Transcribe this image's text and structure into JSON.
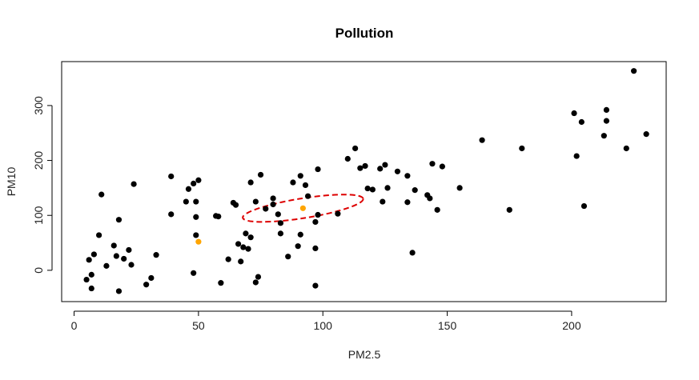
{
  "chart_data": {
    "type": "scatter",
    "title": "Pollution",
    "xlabel": "PM2.5",
    "ylabel": "PM10",
    "xlim": [
      -5,
      238
    ],
    "ylim": [
      -57,
      380
    ],
    "xticks": [
      "0",
      "50",
      "100",
      "150",
      "200"
    ],
    "xtick_values": [
      0,
      50,
      100,
      150,
      200
    ],
    "yticks": [
      "0",
      "100",
      "200",
      "300"
    ],
    "ytick_values": [
      0,
      100,
      200,
      300
    ],
    "grid": false,
    "point_color": "#000000",
    "highlight_color": "#FFA500",
    "ellipse_color": "#DD0000",
    "series": [
      {
        "points": [
          [
            5,
            -17
          ],
          [
            6,
            19
          ],
          [
            7,
            -33
          ],
          [
            7,
            -8
          ],
          [
            8,
            29
          ],
          [
            10,
            64
          ],
          [
            11,
            138
          ],
          [
            13,
            8
          ],
          [
            16,
            45
          ],
          [
            17,
            26
          ],
          [
            18,
            92
          ],
          [
            18,
            -38
          ],
          [
            20,
            21
          ],
          [
            22,
            37
          ],
          [
            23,
            10
          ],
          [
            24,
            157
          ],
          [
            29,
            -26
          ],
          [
            31,
            -14
          ],
          [
            33,
            28
          ],
          [
            39,
            171
          ],
          [
            39,
            102
          ],
          [
            45,
            125
          ],
          [
            46,
            148
          ],
          [
            48,
            158
          ],
          [
            48,
            -5
          ],
          [
            49,
            64
          ],
          [
            49,
            125
          ],
          [
            49,
            97
          ],
          [
            50,
            164
          ],
          [
            57,
            99
          ],
          [
            58,
            98
          ],
          [
            59,
            -23
          ],
          [
            62,
            20
          ],
          [
            64,
            123
          ],
          [
            65,
            119
          ],
          [
            66,
            48
          ],
          [
            67,
            16
          ],
          [
            68,
            42
          ],
          [
            69,
            67
          ],
          [
            70,
            39
          ],
          [
            71,
            60
          ],
          [
            71,
            160
          ],
          [
            73,
            -22
          ],
          [
            73,
            125
          ],
          [
            74,
            -12
          ],
          [
            75,
            174
          ],
          [
            77,
            112
          ],
          [
            80,
            131
          ],
          [
            80,
            120
          ],
          [
            82,
            102
          ],
          [
            83,
            86
          ],
          [
            83,
            67
          ],
          [
            86,
            25
          ],
          [
            88,
            160
          ],
          [
            90,
            44
          ],
          [
            91,
            172
          ],
          [
            91,
            65
          ],
          [
            93,
            155
          ],
          [
            94,
            135
          ],
          [
            97,
            88
          ],
          [
            97,
            40
          ],
          [
            97,
            -28
          ],
          [
            98,
            184
          ],
          [
            98,
            101
          ],
          [
            106,
            103
          ],
          [
            110,
            203
          ],
          [
            113,
            222
          ],
          [
            115,
            186
          ],
          [
            117,
            190
          ],
          [
            118,
            149
          ],
          [
            120,
            147
          ],
          [
            123,
            185
          ],
          [
            124,
            125
          ],
          [
            125,
            192
          ],
          [
            126,
            150
          ],
          [
            130,
            180
          ],
          [
            134,
            124
          ],
          [
            134,
            172
          ],
          [
            136,
            32
          ],
          [
            137,
            146
          ],
          [
            142,
            137
          ],
          [
            143,
            131
          ],
          [
            144,
            194
          ],
          [
            146,
            110
          ],
          [
            148,
            189
          ],
          [
            155,
            150
          ],
          [
            164,
            237
          ],
          [
            175,
            110
          ],
          [
            180,
            222
          ],
          [
            201,
            286
          ],
          [
            202,
            208
          ],
          [
            204,
            270
          ],
          [
            205,
            117
          ],
          [
            213,
            245
          ],
          [
            214,
            292
          ],
          [
            214,
            272
          ],
          [
            222,
            222
          ],
          [
            225,
            363
          ],
          [
            230,
            248
          ]
        ]
      },
      {
        "points": [
          [
            50,
            52
          ],
          [
            92,
            113
          ]
        ],
        "color": "#FFA500"
      }
    ],
    "annotations": [
      {
        "type": "ellipse",
        "center": [
          92,
          113
        ],
        "rx": 24.5,
        "ry": 18,
        "angle_deg": 9,
        "style": "dashed"
      }
    ]
  }
}
